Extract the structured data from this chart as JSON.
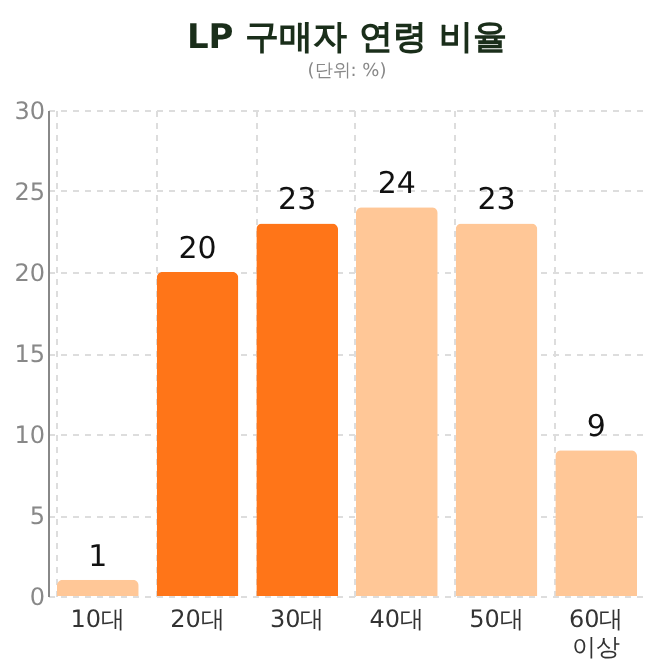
{
  "chart_data": {
    "type": "bar",
    "title": "LP 구매자 연령 비율",
    "subtitle": "(단위: %)",
    "categories": [
      "10대",
      "20대",
      "30대",
      "40대",
      "50대",
      "60대 이상"
    ],
    "values": [
      1,
      20,
      23,
      24,
      23,
      9
    ],
    "colors": [
      "#ffc797",
      "#ff7518",
      "#ff7518",
      "#ffc797",
      "#ffc797",
      "#ffc797"
    ],
    "ylim": [
      0,
      30
    ],
    "yticks": [
      0,
      5,
      10,
      15,
      20,
      25,
      30
    ],
    "grid": true,
    "data_labels": true
  }
}
